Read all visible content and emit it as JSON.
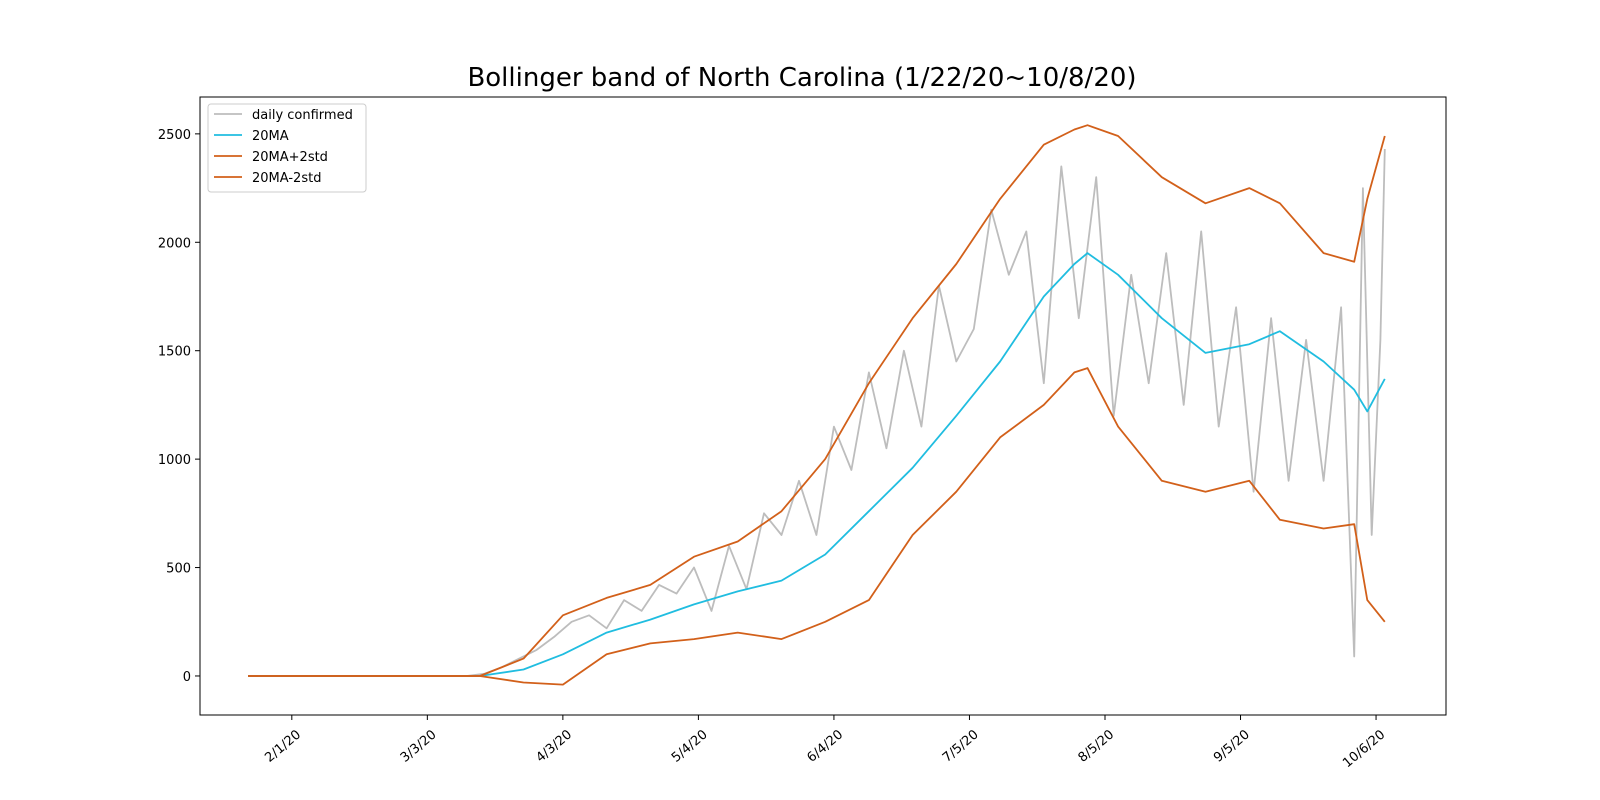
{
  "chart_data": {
    "type": "line",
    "title": "Bollinger band of North Carolina (1/22/20~10/8/20)",
    "xlabel": "",
    "ylabel": "",
    "x_start": "1/22/20",
    "x_end": "10/8/20",
    "xlim": [
      "1/11/20",
      "10/22/20"
    ],
    "ylim": [
      -180,
      2670
    ],
    "y_ticks": [
      0,
      500,
      1000,
      1500,
      2000,
      2500
    ],
    "x_ticks": [
      "2/1/20",
      "3/3/20",
      "4/3/20",
      "5/4/20",
      "6/4/20",
      "7/5/20",
      "8/5/20",
      "9/5/20",
      "10/6/20"
    ],
    "grid": false,
    "legend_position": "top-left",
    "colors": {
      "daily": "#bdbdbd",
      "ma": "#20bde0",
      "band": "#d2601a"
    },
    "series": [
      {
        "name": "daily confirmed",
        "points": [
          [
            "1/22/20",
            0
          ],
          [
            "3/12/20",
            0
          ],
          [
            "3/16/20",
            10
          ],
          [
            "3/20/20",
            40
          ],
          [
            "3/24/20",
            80
          ],
          [
            "3/28/20",
            120
          ],
          [
            "4/1/20",
            180
          ],
          [
            "4/5/20",
            250
          ],
          [
            "4/9/20",
            280
          ],
          [
            "4/13/20",
            220
          ],
          [
            "4/17/20",
            350
          ],
          [
            "4/21/20",
            300
          ],
          [
            "4/25/20",
            420
          ],
          [
            "4/29/20",
            380
          ],
          [
            "5/3/20",
            500
          ],
          [
            "5/7/20",
            300
          ],
          [
            "5/11/20",
            600
          ],
          [
            "5/15/20",
            400
          ],
          [
            "5/19/20",
            750
          ],
          [
            "5/23/20",
            650
          ],
          [
            "5/27/20",
            900
          ],
          [
            "5/31/20",
            650
          ],
          [
            "6/4/20",
            1150
          ],
          [
            "6/8/20",
            950
          ],
          [
            "6/12/20",
            1400
          ],
          [
            "6/16/20",
            1050
          ],
          [
            "6/20/20",
            1500
          ],
          [
            "6/24/20",
            1150
          ],
          [
            "6/28/20",
            1800
          ],
          [
            "7/2/20",
            1450
          ],
          [
            "7/6/20",
            1600
          ],
          [
            "7/10/20",
            2150
          ],
          [
            "7/14/20",
            1850
          ],
          [
            "7/18/20",
            2050
          ],
          [
            "7/22/20",
            1350
          ],
          [
            "7/26/20",
            2350
          ],
          [
            "7/30/20",
            1650
          ],
          [
            "8/3/20",
            2300
          ],
          [
            "8/7/20",
            1200
          ],
          [
            "8/11/20",
            1850
          ],
          [
            "8/15/20",
            1350
          ],
          [
            "8/19/20",
            1950
          ],
          [
            "8/23/20",
            1250
          ],
          [
            "8/27/20",
            2050
          ],
          [
            "8/31/20",
            1150
          ],
          [
            "9/4/20",
            1700
          ],
          [
            "9/8/20",
            850
          ],
          [
            "9/12/20",
            1650
          ],
          [
            "9/16/20",
            900
          ],
          [
            "9/20/20",
            1550
          ],
          [
            "9/24/20",
            900
          ],
          [
            "9/28/20",
            1700
          ],
          [
            "10/1/20",
            90
          ],
          [
            "10/3/20",
            2250
          ],
          [
            "10/5/20",
            650
          ],
          [
            "10/7/20",
            1550
          ],
          [
            "10/8/20",
            2430
          ]
        ]
      },
      {
        "name": "20MA",
        "points": [
          [
            "1/22/20",
            0
          ],
          [
            "3/15/20",
            0
          ],
          [
            "3/25/20",
            30
          ],
          [
            "4/3/20",
            100
          ],
          [
            "4/13/20",
            200
          ],
          [
            "4/23/20",
            260
          ],
          [
            "5/3/20",
            330
          ],
          [
            "5/13/20",
            390
          ],
          [
            "5/23/20",
            440
          ],
          [
            "6/2/20",
            560
          ],
          [
            "6/12/20",
            760
          ],
          [
            "6/22/20",
            960
          ],
          [
            "7/2/20",
            1200
          ],
          [
            "7/12/20",
            1450
          ],
          [
            "7/22/20",
            1750
          ],
          [
            "7/29/20",
            1900
          ],
          [
            "8/1/20",
            1950
          ],
          [
            "8/8/20",
            1850
          ],
          [
            "8/18/20",
            1650
          ],
          [
            "8/28/20",
            1490
          ],
          [
            "9/7/20",
            1530
          ],
          [
            "9/14/20",
            1590
          ],
          [
            "9/24/20",
            1450
          ],
          [
            "10/1/20",
            1320
          ],
          [
            "10/4/20",
            1220
          ],
          [
            "10/8/20",
            1370
          ]
        ]
      },
      {
        "name": "20MA+2std",
        "points": [
          [
            "1/22/20",
            0
          ],
          [
            "3/15/20",
            0
          ],
          [
            "3/25/20",
            80
          ],
          [
            "4/3/20",
            280
          ],
          [
            "4/13/20",
            360
          ],
          [
            "4/23/20",
            420
          ],
          [
            "5/3/20",
            550
          ],
          [
            "5/13/20",
            620
          ],
          [
            "5/23/20",
            760
          ],
          [
            "6/2/20",
            1000
          ],
          [
            "6/12/20",
            1350
          ],
          [
            "6/22/20",
            1650
          ],
          [
            "7/2/20",
            1900
          ],
          [
            "7/12/20",
            2200
          ],
          [
            "7/22/20",
            2450
          ],
          [
            "7/29/20",
            2520
          ],
          [
            "8/1/20",
            2540
          ],
          [
            "8/8/20",
            2490
          ],
          [
            "8/18/20",
            2300
          ],
          [
            "8/28/20",
            2180
          ],
          [
            "9/7/20",
            2250
          ],
          [
            "9/14/20",
            2180
          ],
          [
            "9/24/20",
            1950
          ],
          [
            "10/1/20",
            1910
          ],
          [
            "10/4/20",
            2200
          ],
          [
            "10/8/20",
            2490
          ]
        ]
      },
      {
        "name": "20MA-2std",
        "points": [
          [
            "1/22/20",
            0
          ],
          [
            "3/15/20",
            0
          ],
          [
            "3/25/20",
            -30
          ],
          [
            "4/3/20",
            -40
          ],
          [
            "4/13/20",
            100
          ],
          [
            "4/23/20",
            150
          ],
          [
            "5/3/20",
            170
          ],
          [
            "5/13/20",
            200
          ],
          [
            "5/23/20",
            170
          ],
          [
            "6/2/20",
            250
          ],
          [
            "6/12/20",
            350
          ],
          [
            "6/22/20",
            650
          ],
          [
            "7/2/20",
            850
          ],
          [
            "7/12/20",
            1100
          ],
          [
            "7/22/20",
            1250
          ],
          [
            "7/29/20",
            1400
          ],
          [
            "8/1/20",
            1420
          ],
          [
            "8/8/20",
            1150
          ],
          [
            "8/18/20",
            900
          ],
          [
            "8/28/20",
            850
          ],
          [
            "9/7/20",
            900
          ],
          [
            "9/14/20",
            720
          ],
          [
            "9/24/20",
            680
          ],
          [
            "10/1/20",
            700
          ],
          [
            "10/4/20",
            350
          ],
          [
            "10/8/20",
            250
          ]
        ]
      }
    ]
  }
}
